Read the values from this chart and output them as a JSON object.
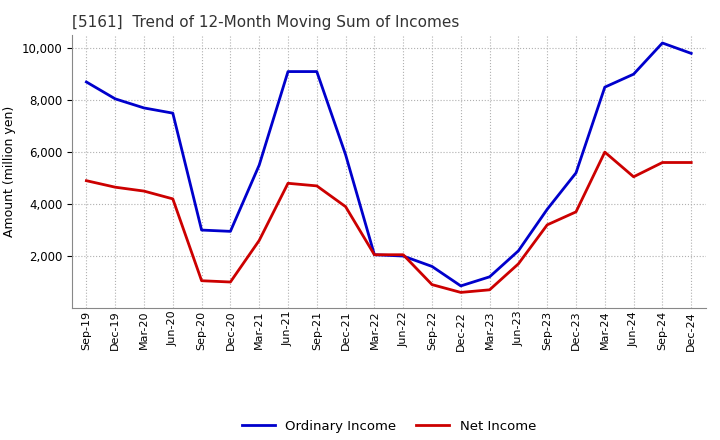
{
  "title": "[5161]  Trend of 12-Month Moving Sum of Incomes",
  "ylabel": "Amount (million yen)",
  "labels": [
    "Sep-19",
    "Dec-19",
    "Mar-20",
    "Jun-20",
    "Sep-20",
    "Dec-20",
    "Mar-21",
    "Jun-21",
    "Sep-21",
    "Dec-21",
    "Mar-22",
    "Jun-22",
    "Sep-22",
    "Dec-22",
    "Mar-23",
    "Jun-23",
    "Sep-23",
    "Dec-23",
    "Mar-24",
    "Jun-24",
    "Sep-24",
    "Dec-24"
  ],
  "ordinary_income": [
    8700,
    8050,
    7700,
    7500,
    3000,
    2950,
    5500,
    9100,
    9100,
    5900,
    2050,
    2000,
    1600,
    850,
    1200,
    2200,
    3800,
    5200,
    8500,
    9000,
    10200,
    9800
  ],
  "net_income": [
    4900,
    4650,
    4500,
    4200,
    1050,
    1000,
    2600,
    4800,
    4700,
    3900,
    2050,
    2050,
    900,
    600,
    700,
    1700,
    3200,
    3700,
    6000,
    5050,
    5600,
    5600
  ],
  "ordinary_color": "#0000cc",
  "net_color": "#cc0000",
  "background_color": "#ffffff",
  "grid_color": "#b0b0b0",
  "ylim": [
    0,
    10500
  ],
  "yticks": [
    2000,
    4000,
    6000,
    8000,
    10000
  ],
  "legend_labels": [
    "Ordinary Income",
    "Net Income"
  ]
}
